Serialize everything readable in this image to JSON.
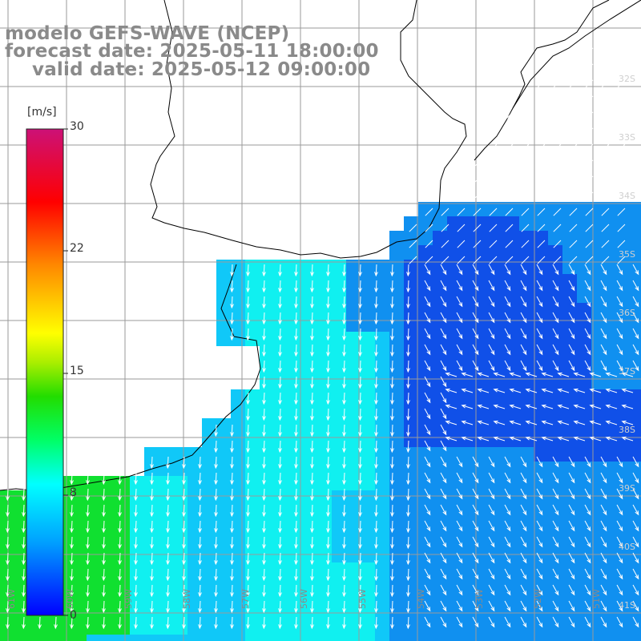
{
  "title": {
    "line1": "modelo GEFS-WAVE (NCEP)",
    "line2": "forecast date: 2025-05-11 18:00:00",
    "line3": "valid date: 2025-05-12 09:00:00"
  },
  "colorbar": {
    "unit": "[m/s]",
    "ticks": [
      "30",
      "22",
      "15",
      "8",
      "0"
    ],
    "min": 0,
    "max": 30,
    "colors": [
      "#0000ff",
      "#00aaff",
      "#00ffee",
      "#00ff66",
      "#33cc00",
      "#ffff00",
      "#ff9900",
      "#ff0000",
      "#cc1177"
    ]
  },
  "longitude_labels": [
    "61W",
    "60W",
    "59W",
    "58W",
    "57W",
    "56W",
    "55W",
    "54W",
    "53W",
    "52W",
    "51W"
  ],
  "latitude_labels": [
    "32S",
    "33S",
    "34S",
    "35S",
    "36S",
    "37S",
    "38S",
    "39S",
    "40S",
    "41S"
  ],
  "field_colors": {
    "green": "#10e030",
    "cyan": "#10f0f0",
    "light_blue": "#10c8f8",
    "blue": "#1090f0",
    "dark_blue": "#1050e8",
    "land": "#ffffff",
    "grid": "#9a9a9a",
    "coast": "#000000"
  }
}
